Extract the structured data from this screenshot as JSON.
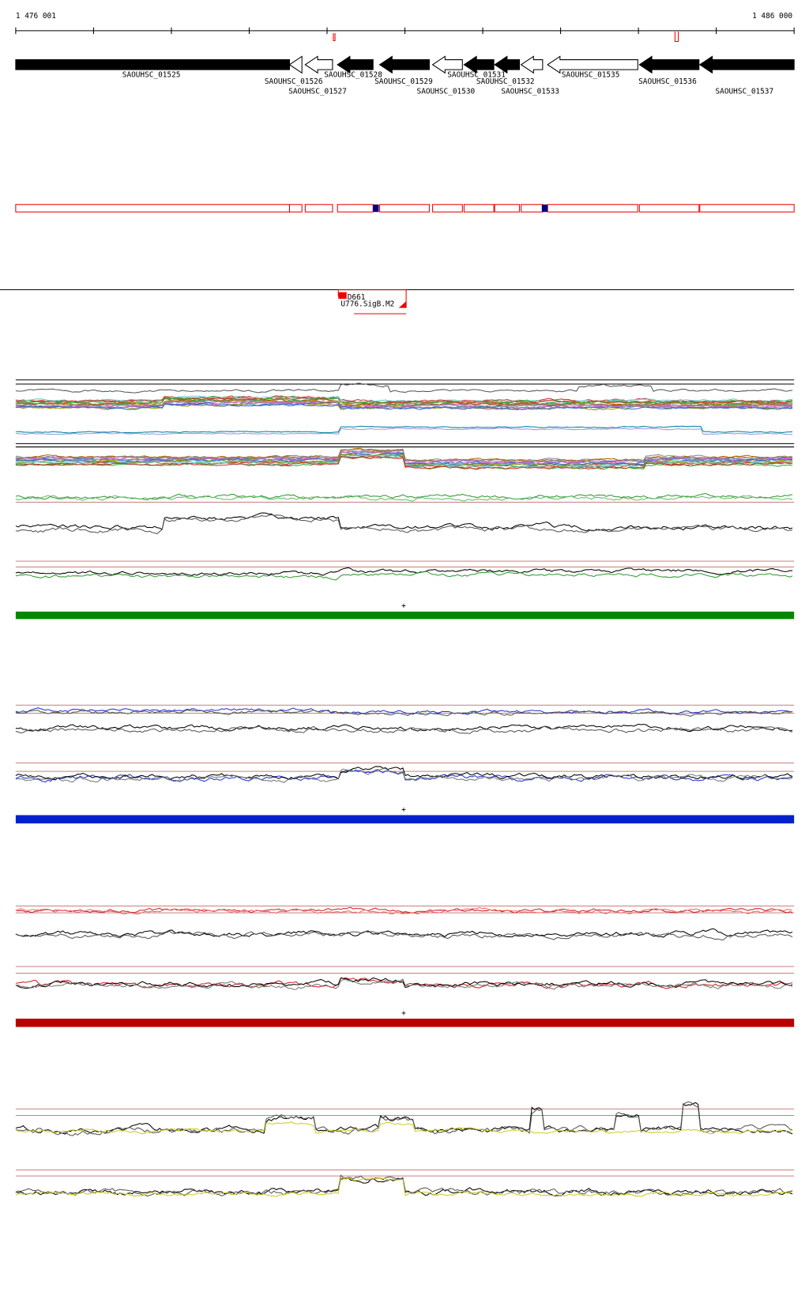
{
  "ruler": {
    "start": "1 476 001",
    "end": "1 486 000"
  },
  "genes": [
    "SAOUHSC_01525",
    "SAOUHSC_01526",
    "SAOUHSC_01527",
    "SAOUHSC_01528",
    "SAOUHSC_01529",
    "SAOUHSC_01530",
    "SAOUHSC_01531",
    "SAOUHSC_01532",
    "SAOUHSC_01533",
    "SAOUHSC_01535",
    "SAOUHSC_01536",
    "SAOUHSC_01537"
  ],
  "feature": {
    "name": "D661",
    "label": "U776.SigB.M2"
  },
  "strands": [
    "+",
    "+",
    "+"
  ]
}
